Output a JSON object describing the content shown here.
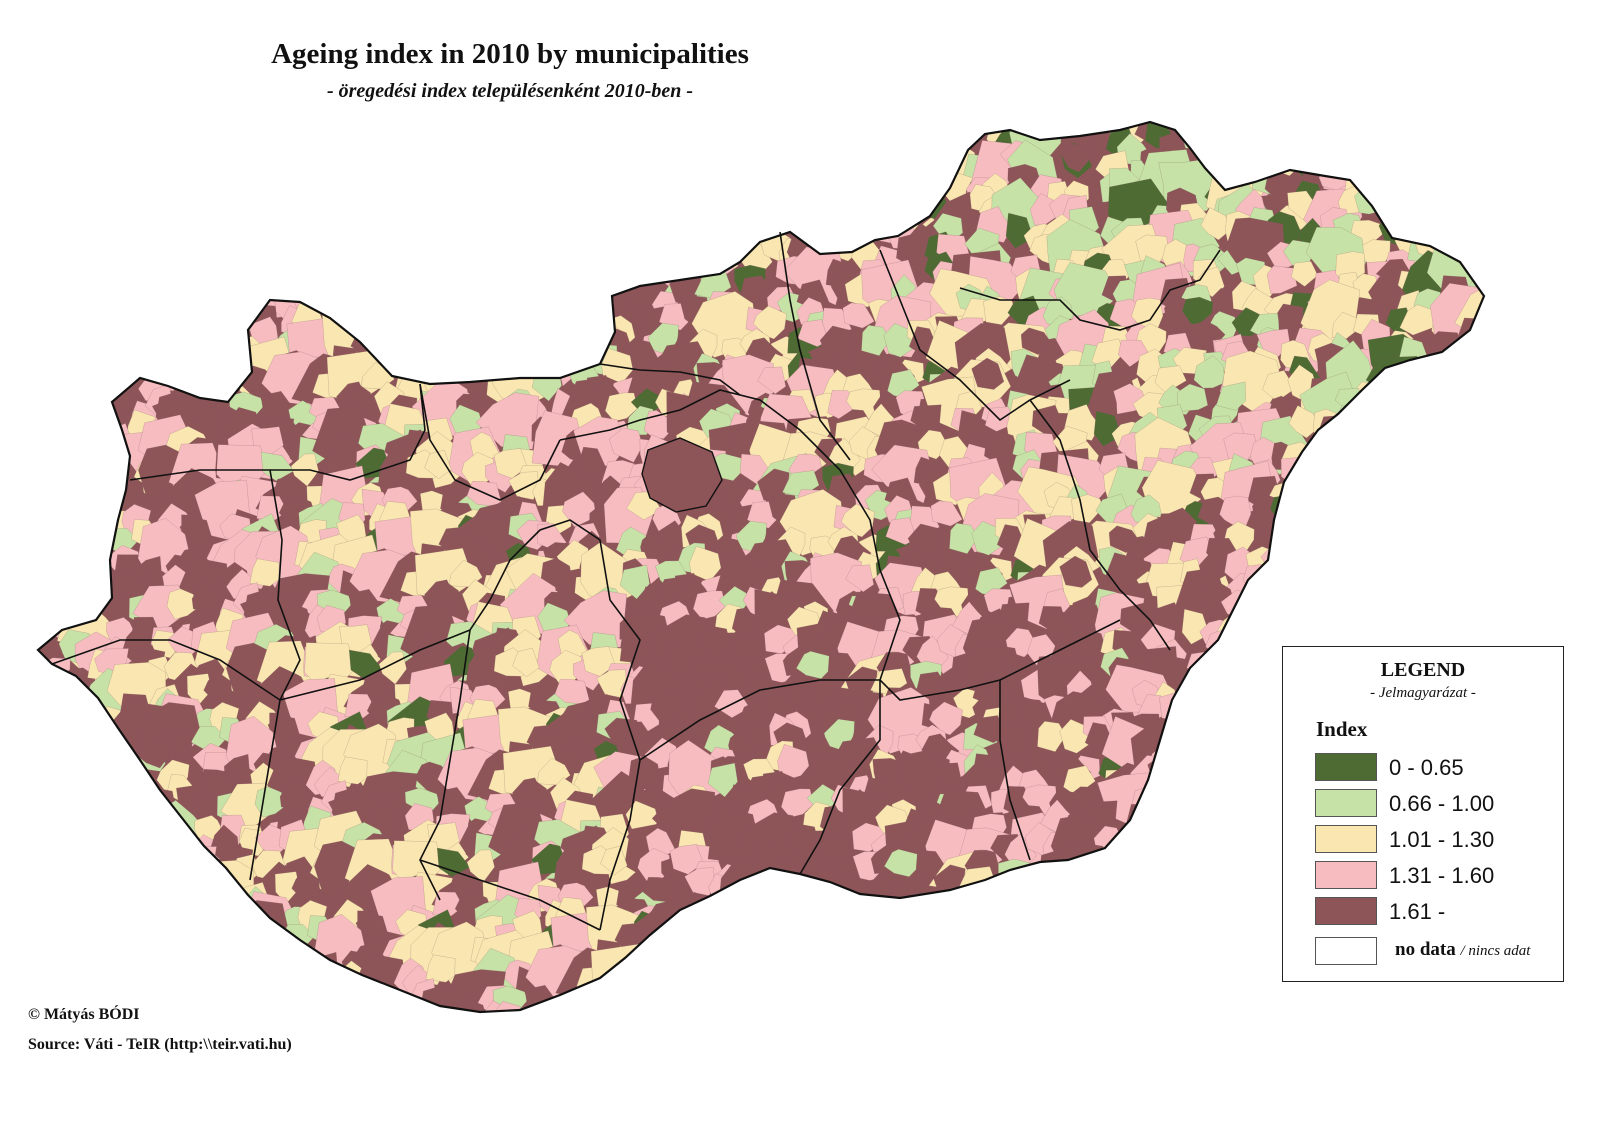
{
  "title": "Ageing index in 2010 by municipalities",
  "subtitle": "- öregedési index településenként 2010-ben -",
  "legend": {
    "title": "LEGEND",
    "subtitle": "- Jelmagyarázat -",
    "heading": "Index",
    "classes": [
      {
        "label": "0 - 0.65",
        "color": "#4e6b34"
      },
      {
        "label": "0.66 - 1.00",
        "color": "#c6e2a6"
      },
      {
        "label": "1.01 - 1.30",
        "color": "#f9e6b0"
      },
      {
        "label": "1.31 - 1.60",
        "color": "#f6bcc0"
      },
      {
        "label": "1.61 -",
        "color": "#8e5559"
      }
    ],
    "no_data": {
      "label": "no data",
      "label_alt": "/ nincs adat",
      "color": "#ffffff"
    }
  },
  "credits": {
    "author": "© Mátyás BÓDI",
    "source": "Source: Váti - TeIR (http:\\\\teir.vati.hu)"
  },
  "map": {
    "country": "Hungary",
    "boundary_color": "#111111",
    "cell_border_color": "#7a5a5c"
  }
}
